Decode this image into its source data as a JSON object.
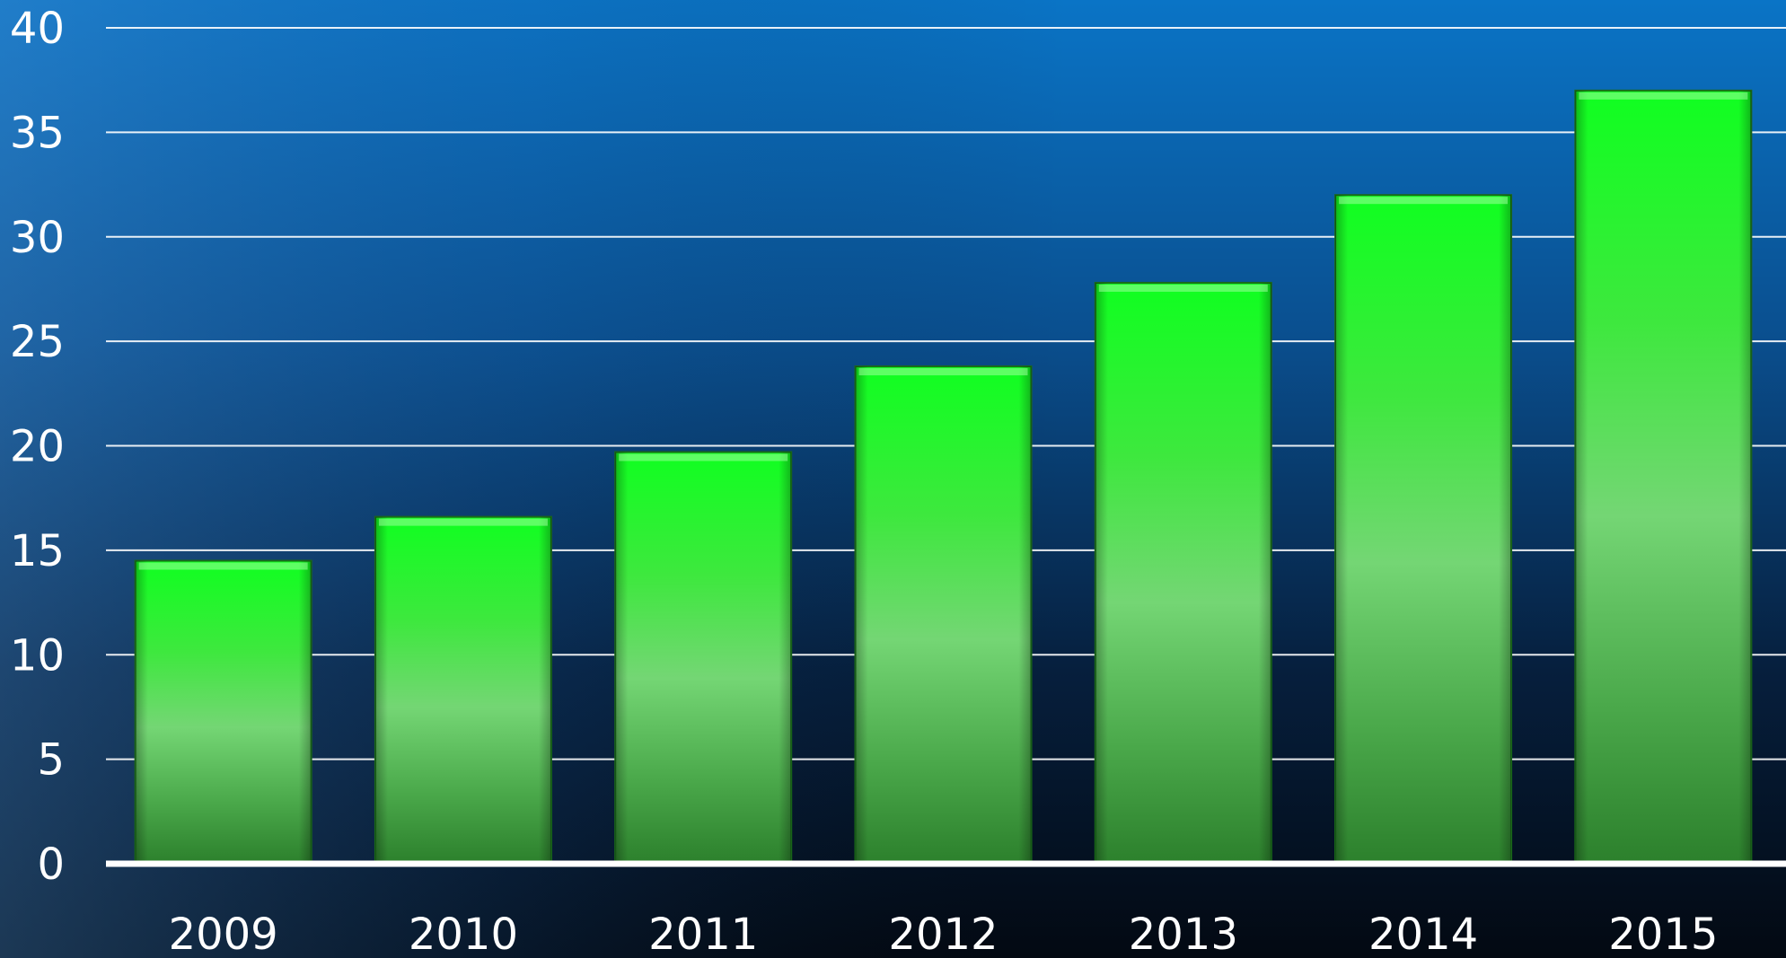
{
  "chart_data": {
    "type": "bar",
    "title": "",
    "xlabel": "",
    "ylabel": "",
    "categories": [
      "2009",
      "2010",
      "2011",
      "2012",
      "2013",
      "2014",
      "2015"
    ],
    "values": [
      14.5,
      16.6,
      19.7,
      23.8,
      27.8,
      32.0,
      37.0
    ],
    "ylim": [
      0,
      40
    ],
    "yticks": [
      "0",
      "5",
      "10",
      "15",
      "20",
      "25",
      "30",
      "35",
      "40"
    ],
    "grid": true,
    "legend": "none",
    "colors": {
      "bar_top": "#10ff20",
      "bar_mid": "#72d672",
      "bar_bottom": "#2c8a2c",
      "bar_edge": "#1a6b1a",
      "gridline": "#ffffff",
      "axis_line": "#ffffff",
      "background_top": "#0a6fc2",
      "background_bottom": "#030a14"
    }
  }
}
